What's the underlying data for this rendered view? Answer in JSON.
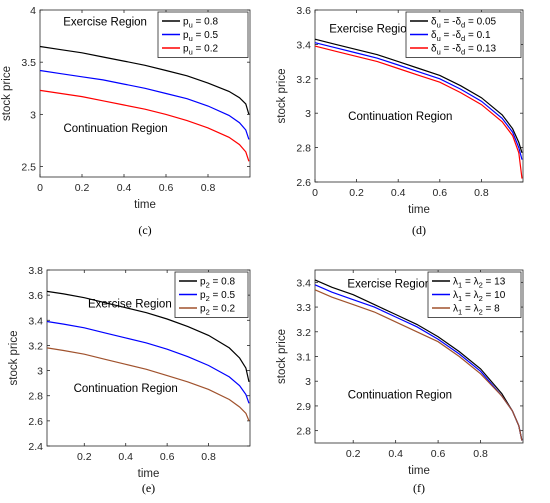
{
  "chart_data": [
    {
      "type": "line",
      "caption": "(c)",
      "xlabel": "time",
      "ylabel": "stock price",
      "xlim": [
        0,
        1
      ],
      "ylim": [
        2.4,
        4
      ],
      "xticks": [
        0,
        0.2,
        0.4,
        0.6,
        0.8
      ],
      "xtick_labels": [
        "0",
        "0.2",
        "0.4",
        "0.6",
        "0.8"
      ],
      "yticks": [
        2.5,
        3,
        3.5,
        4
      ],
      "ytick_labels": [
        "2.5",
        "3",
        "3.5",
        "4"
      ],
      "annotations": [
        {
          "text": "Exercise Region",
          "x": 0.31,
          "y": 3.85
        },
        {
          "text": "Continuation Region",
          "x": 0.36,
          "y": 2.83
        }
      ],
      "legend": {
        "position": "top-right"
      },
      "series": [
        {
          "name": "pu = 0.8",
          "legend_main": "p",
          "legend_sub": "u",
          "legend_rest": " = 0.8",
          "color": "#000000",
          "x": [
            0,
            0.1,
            0.2,
            0.3,
            0.4,
            0.5,
            0.6,
            0.7,
            0.8,
            0.9,
            0.95,
            0.98,
            0.995
          ],
          "y": [
            3.65,
            3.62,
            3.59,
            3.55,
            3.51,
            3.47,
            3.42,
            3.37,
            3.3,
            3.22,
            3.16,
            3.1,
            3.0
          ]
        },
        {
          "name": "pu = 0.5",
          "legend_main": "p",
          "legend_sub": "u",
          "legend_rest": " = 0.5",
          "color": "#0000ff",
          "x": [
            0,
            0.1,
            0.2,
            0.3,
            0.4,
            0.5,
            0.6,
            0.7,
            0.8,
            0.9,
            0.95,
            0.98,
            0.995
          ],
          "y": [
            3.42,
            3.39,
            3.36,
            3.33,
            3.29,
            3.25,
            3.2,
            3.15,
            3.08,
            2.99,
            2.92,
            2.85,
            2.76
          ]
        },
        {
          "name": "pu = 0.2",
          "legend_main": "p",
          "legend_sub": "u",
          "legend_rest": " = 0.2",
          "color": "#ff0000",
          "x": [
            0,
            0.1,
            0.2,
            0.3,
            0.4,
            0.5,
            0.6,
            0.7,
            0.8,
            0.9,
            0.95,
            0.98,
            0.995
          ],
          "y": [
            3.23,
            3.2,
            3.17,
            3.13,
            3.09,
            3.05,
            3.0,
            2.94,
            2.87,
            2.78,
            2.71,
            2.64,
            2.55
          ]
        }
      ]
    },
    {
      "type": "line",
      "caption": "(d)",
      "xlabel": "time",
      "ylabel": "stock price",
      "xlim": [
        0,
        1
      ],
      "ylim": [
        2.6,
        3.6
      ],
      "xticks": [
        0,
        0.2,
        0.4,
        0.6,
        0.8
      ],
      "xtick_labels": [
        "0",
        "0.2",
        "0.4",
        "0.6",
        "0.8"
      ],
      "yticks": [
        2.6,
        2.8,
        3,
        3.2,
        3.4,
        3.6
      ],
      "ytick_labels": [
        "2.6",
        "2.8",
        "3",
        "3.2",
        "3.4",
        "3.6"
      ],
      "annotations": [
        {
          "text": "Exercise Region",
          "x": 0.27,
          "y": 3.47
        },
        {
          "text": "Continuation Region",
          "x": 0.41,
          "y": 2.96
        }
      ],
      "legend": {
        "position": "top-right"
      },
      "series": [
        {
          "name": "δu = -δd = 0.05",
          "legend_main": "δ",
          "legend_sub": "u",
          "legend_mid": " = -δ",
          "legend_sub2": "d",
          "legend_rest": " = 0.05",
          "color": "#000000",
          "x": [
            0,
            0.1,
            0.2,
            0.3,
            0.4,
            0.5,
            0.6,
            0.7,
            0.8,
            0.9,
            0.95,
            0.98,
            0.995
          ],
          "y": [
            3.43,
            3.4,
            3.37,
            3.34,
            3.3,
            3.26,
            3.22,
            3.16,
            3.09,
            2.99,
            2.91,
            2.83,
            2.77
          ]
        },
        {
          "name": "δu = -δd = 0.1",
          "legend_main": "δ",
          "legend_sub": "u",
          "legend_mid": " = -δ",
          "legend_sub2": "d",
          "legend_rest": " = 0.1",
          "color": "#0000ff",
          "x": [
            0,
            0.1,
            0.2,
            0.3,
            0.4,
            0.5,
            0.6,
            0.7,
            0.8,
            0.9,
            0.95,
            0.98,
            0.995
          ],
          "y": [
            3.41,
            3.38,
            3.35,
            3.32,
            3.28,
            3.24,
            3.2,
            3.14,
            3.07,
            2.97,
            2.89,
            2.8,
            2.73
          ]
        },
        {
          "name": "δu = -δd = 0.13",
          "legend_main": "δ",
          "legend_sub": "u",
          "legend_mid": " = -δ",
          "legend_sub2": "d",
          "legend_rest": " = 0.13",
          "color": "#ff0000",
          "x": [
            0,
            0.1,
            0.2,
            0.3,
            0.4,
            0.5,
            0.6,
            0.7,
            0.8,
            0.9,
            0.95,
            0.98,
            0.995
          ],
          "y": [
            3.39,
            3.36,
            3.33,
            3.3,
            3.26,
            3.22,
            3.18,
            3.12,
            3.05,
            2.95,
            2.87,
            2.77,
            2.62
          ]
        }
      ]
    },
    {
      "type": "line",
      "caption": "(e)",
      "xlabel": "time",
      "ylabel": "stock price",
      "xlim": [
        0.02,
        1
      ],
      "ylim": [
        2.4,
        3.8
      ],
      "xticks": [
        0.2,
        0.4,
        0.6,
        0.8
      ],
      "xtick_labels": [
        "0.2",
        "0.4",
        "0.6",
        "0.8"
      ],
      "yticks": [
        2.4,
        2.6,
        2.8,
        3,
        3.2,
        3.4,
        3.6,
        3.8
      ],
      "ytick_labels": [
        "2.4",
        "2.6",
        "2.8",
        "3",
        "3.2",
        "3.4",
        "3.6",
        "3.8"
      ],
      "annotations": [
        {
          "text": "Exercise Region",
          "x": 0.42,
          "y": 3.5
        },
        {
          "text": "Continuation Region",
          "x": 0.4,
          "y": 2.83
        }
      ],
      "legend": {
        "position": "top-right"
      },
      "series": [
        {
          "name": "p2 = 0.8",
          "legend_main": "p",
          "legend_sub": "2",
          "legend_rest": " = 0.8",
          "color": "#000000",
          "x": [
            0.02,
            0.1,
            0.2,
            0.3,
            0.4,
            0.5,
            0.6,
            0.7,
            0.8,
            0.9,
            0.95,
            0.98,
            0.995
          ],
          "y": [
            3.63,
            3.61,
            3.58,
            3.54,
            3.5,
            3.46,
            3.41,
            3.35,
            3.28,
            3.18,
            3.1,
            3.02,
            2.91
          ]
        },
        {
          "name": "p2 = 0.5",
          "legend_main": "p",
          "legend_sub": "2",
          "legend_rest": " = 0.5",
          "color": "#0000ff",
          "x": [
            0.02,
            0.1,
            0.2,
            0.3,
            0.4,
            0.5,
            0.6,
            0.7,
            0.8,
            0.9,
            0.95,
            0.98,
            0.995
          ],
          "y": [
            3.39,
            3.37,
            3.34,
            3.3,
            3.26,
            3.22,
            3.17,
            3.11,
            3.04,
            2.95,
            2.88,
            2.81,
            2.74
          ]
        },
        {
          "name": "p2 = 0.2",
          "legend_main": "p",
          "legend_sub": "2",
          "legend_rest": " = 0.2",
          "color": "#a0522d",
          "x": [
            0.02,
            0.1,
            0.2,
            0.3,
            0.4,
            0.5,
            0.6,
            0.7,
            0.8,
            0.9,
            0.95,
            0.98,
            0.995
          ],
          "y": [
            3.18,
            3.16,
            3.13,
            3.09,
            3.05,
            3.01,
            2.96,
            2.91,
            2.85,
            2.77,
            2.71,
            2.66,
            2.6
          ]
        }
      ]
    },
    {
      "type": "line",
      "caption": "(f)",
      "xlabel": "time",
      "ylabel": "stock price",
      "xlim": [
        0.02,
        1
      ],
      "ylim": [
        2.75,
        3.45
      ],
      "xticks": [
        0.2,
        0.4,
        0.6,
        0.8
      ],
      "xtick_labels": [
        "0.2",
        "0.4",
        "0.6",
        "0.8"
      ],
      "yticks": [
        2.8,
        2.9,
        3,
        3.1,
        3.2,
        3.3,
        3.4
      ],
      "ytick_labels": [
        "2.8",
        "2.9",
        "3",
        "3.1",
        "3.2",
        "3.3",
        "3.4"
      ],
      "annotations": [
        {
          "text": "Exercise Region",
          "x": 0.37,
          "y": 3.38
        },
        {
          "text": "Continuation Region",
          "x": 0.42,
          "y": 2.93
        }
      ],
      "legend": {
        "position": "top-right"
      },
      "series": [
        {
          "name": "λ1 = λ2 = 13",
          "legend_main": "λ",
          "legend_sub": "1",
          "legend_mid": " = λ",
          "legend_sub2": "2",
          "legend_rest": " = 13",
          "color": "#000000",
          "x": [
            0.02,
            0.1,
            0.2,
            0.3,
            0.4,
            0.5,
            0.6,
            0.7,
            0.8,
            0.9,
            0.95,
            0.98,
            0.995
          ],
          "y": [
            3.41,
            3.38,
            3.35,
            3.31,
            3.27,
            3.23,
            3.18,
            3.12,
            3.05,
            2.95,
            2.88,
            2.82,
            2.76
          ]
        },
        {
          "name": "λ1 = λ2 = 10",
          "legend_main": "λ",
          "legend_sub": "1",
          "legend_mid": " = λ",
          "legend_sub2": "2",
          "legend_rest": " = 10",
          "color": "#0000ff",
          "x": [
            0.02,
            0.1,
            0.2,
            0.3,
            0.4,
            0.5,
            0.6,
            0.7,
            0.8,
            0.9,
            0.95,
            0.98,
            0.995
          ],
          "y": [
            3.39,
            3.36,
            3.33,
            3.3,
            3.26,
            3.22,
            3.17,
            3.11,
            3.04,
            2.94,
            2.88,
            2.82,
            2.76
          ]
        },
        {
          "name": "λ1 = λ2 = 8",
          "legend_main": "λ",
          "legend_sub": "1",
          "legend_mid": " = λ",
          "legend_sub2": "2",
          "legend_rest": " = 8",
          "color": "#a0522d",
          "x": [
            0.02,
            0.1,
            0.2,
            0.3,
            0.4,
            0.5,
            0.6,
            0.7,
            0.8,
            0.9,
            0.95,
            0.98,
            0.995
          ],
          "y": [
            3.37,
            3.34,
            3.31,
            3.28,
            3.24,
            3.2,
            3.16,
            3.1,
            3.03,
            2.94,
            2.88,
            2.82,
            2.76
          ]
        }
      ]
    }
  ]
}
